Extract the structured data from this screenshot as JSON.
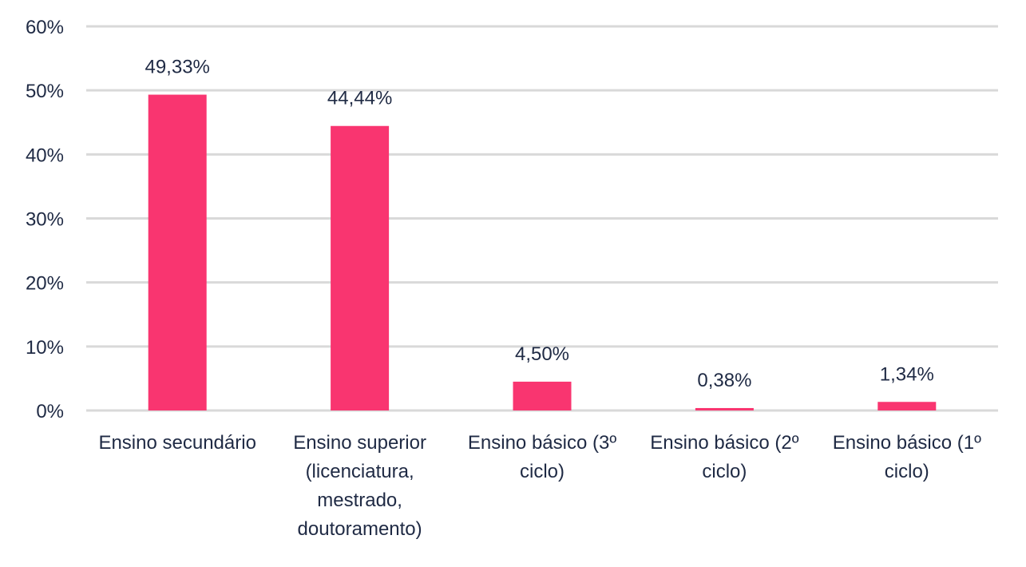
{
  "chart_data": {
    "type": "bar",
    "title": "",
    "xlabel": "",
    "ylabel": "",
    "ylim": [
      0,
      60
    ],
    "y_ticks": [
      "0%",
      "10%",
      "20%",
      "30%",
      "40%",
      "50%",
      "60%"
    ],
    "grid": true,
    "legend": "none",
    "bar_color": "#f93570",
    "grid_color": "#d9d9d9",
    "text_color": "#1f2a44",
    "categories": [
      [
        "Ensino secundário"
      ],
      [
        "Ensino superior",
        "(licenciatura,",
        "mestrado,",
        "doutoramento)"
      ],
      [
        "Ensino básico (3º",
        "ciclo)"
      ],
      [
        "Ensino básico (2º",
        "ciclo)"
      ],
      [
        "Ensino básico (1º",
        "ciclo)"
      ]
    ],
    "values": [
      49.33,
      44.44,
      4.5,
      0.38,
      1.34
    ],
    "data_labels": [
      "49,33%",
      "44,44%",
      "4,50%",
      "0,38%",
      "1,34%"
    ]
  }
}
